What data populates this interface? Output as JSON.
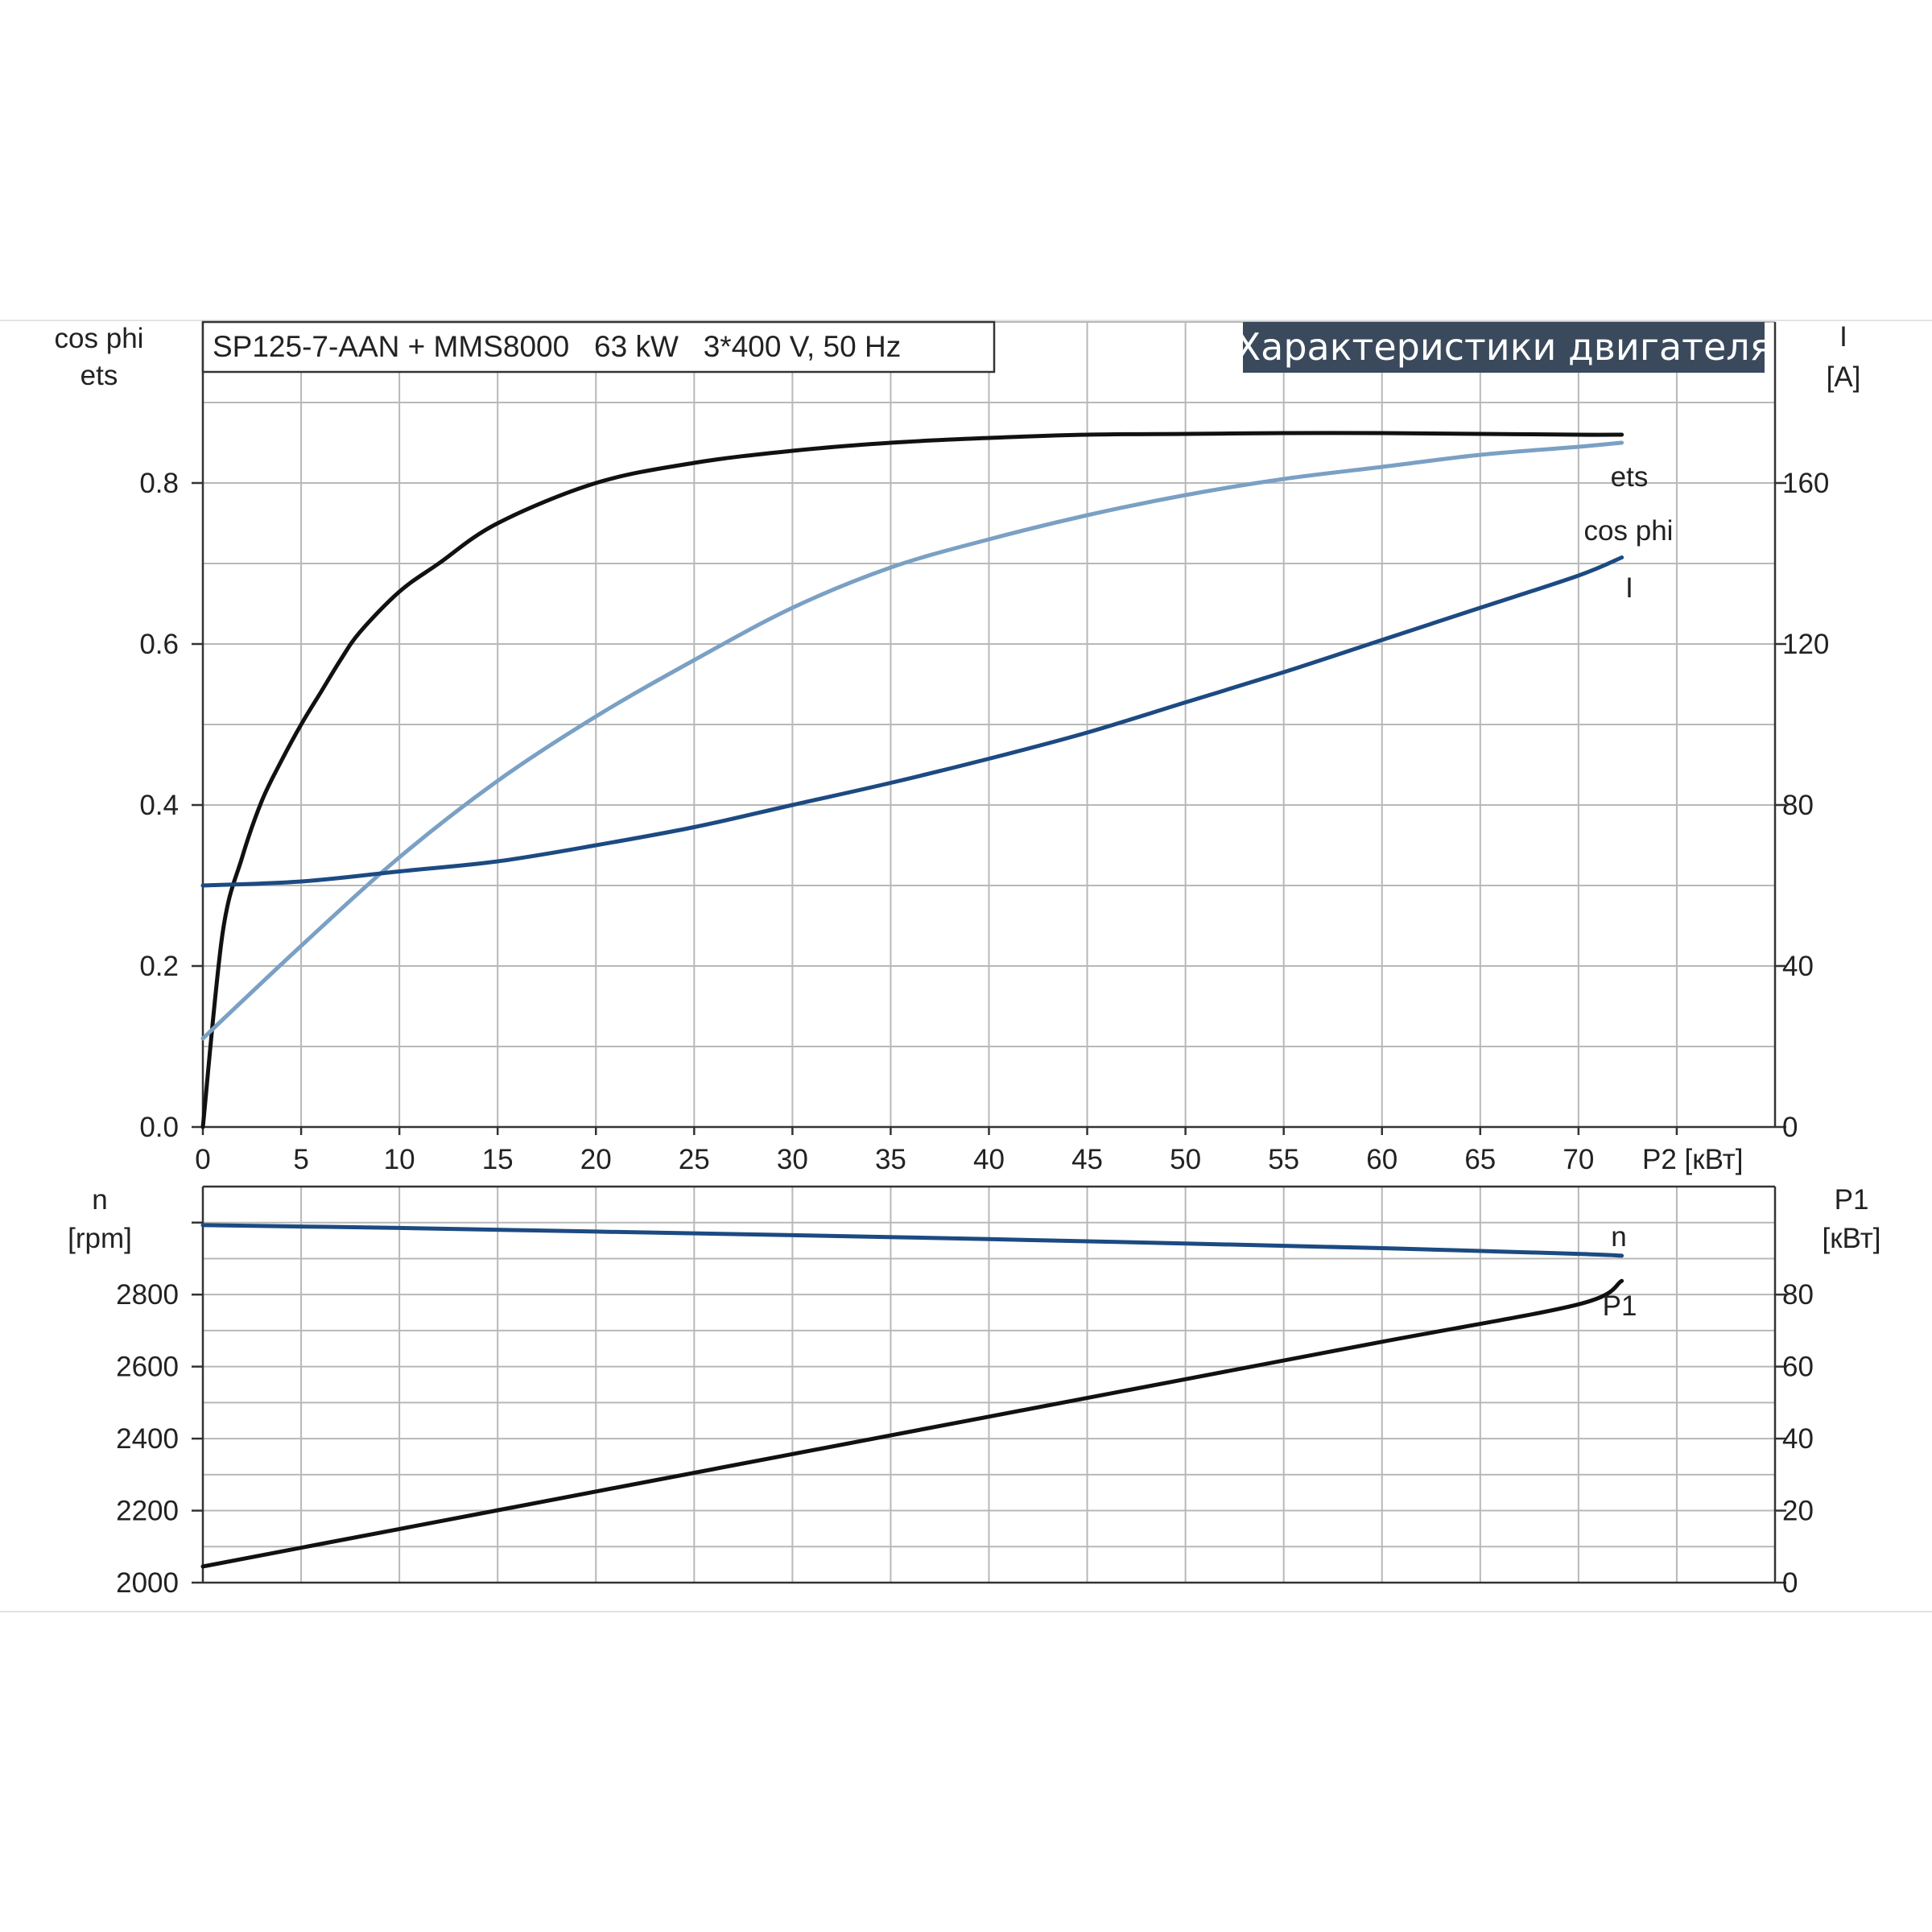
{
  "header": {
    "model": "SP125-7-AAN + MMS8000   63 kW   3*400 V, 50 Hz",
    "title": "Характеристики двигателя"
  },
  "chart_data": [
    {
      "type": "line",
      "title": "Характеристики двигателя",
      "xlabel": "P2 [кВт]",
      "xlim": [
        0,
        80
      ],
      "x_ticks": [
        "0",
        "5",
        "10",
        "15",
        "20",
        "25",
        "30",
        "35",
        "40",
        "45",
        "50",
        "55",
        "60",
        "65",
        "70"
      ],
      "y_left": {
        "label_lines": [
          "cos phi",
          "ets"
        ],
        "lim": [
          0,
          1.0
        ],
        "ticks": [
          "0.0",
          "0.2",
          "0.4",
          "0.6",
          "0.8"
        ]
      },
      "y_right": {
        "label_lines": [
          "I",
          "[A]"
        ],
        "lim": [
          0,
          200
        ],
        "ticks": [
          "0",
          "40",
          "80",
          "120",
          "160"
        ]
      },
      "grid": true,
      "series": [
        {
          "name": "ets",
          "axis": "left",
          "color": "#111111",
          "x": [
            0,
            1,
            2,
            3,
            4,
            5,
            6,
            7,
            8,
            10,
            12,
            15,
            20,
            25,
            30,
            35,
            40,
            45,
            50,
            55,
            60,
            65,
            70,
            72.2
          ],
          "y": [
            0.0,
            0.24,
            0.335,
            0.405,
            0.455,
            0.5,
            0.54,
            0.58,
            0.615,
            0.665,
            0.7,
            0.75,
            0.8,
            0.825,
            0.84,
            0.85,
            0.856,
            0.86,
            0.861,
            0.862,
            0.862,
            0.861,
            0.86,
            0.86
          ]
        },
        {
          "name": "cos phi",
          "axis": "left",
          "color": "#7aa0c4",
          "x": [
            0,
            5,
            10,
            15,
            20,
            25,
            30,
            35,
            40,
            45,
            50,
            55,
            60,
            65,
            70,
            72.2
          ],
          "y": [
            0.11,
            0.225,
            0.335,
            0.43,
            0.51,
            0.58,
            0.645,
            0.695,
            0.73,
            0.76,
            0.785,
            0.805,
            0.82,
            0.835,
            0.845,
            0.85
          ]
        },
        {
          "name": "I",
          "axis": "right",
          "color": "#1c4a82",
          "x": [
            0,
            5,
            10,
            15,
            20,
            25,
            30,
            35,
            40,
            45,
            50,
            55,
            60,
            65,
            70,
            72.2
          ],
          "y": [
            60,
            61,
            63.5,
            66,
            70,
            74.5,
            80,
            85.5,
            91.5,
            98,
            105.5,
            113,
            121,
            129,
            137,
            141.5
          ]
        }
      ]
    },
    {
      "type": "line",
      "xlabel": "",
      "xlim": [
        0,
        80
      ],
      "y_left": {
        "label_lines": [
          "n",
          "[rpm]"
        ],
        "lim": [
          2000,
          3100
        ],
        "ticks": [
          "2000",
          "2200",
          "2400",
          "2600",
          "2800"
        ]
      },
      "y_right": {
        "label_lines": [
          "P1",
          "[кВт]"
        ],
        "lim": [
          0,
          110
        ],
        "ticks": [
          "0",
          "20",
          "40",
          "60",
          "80"
        ]
      },
      "grid": true,
      "series": [
        {
          "name": "n",
          "axis": "left",
          "color": "#1c4a82",
          "x": [
            0,
            10,
            20,
            30,
            40,
            50,
            60,
            70,
            72.2
          ],
          "y": [
            2993,
            2985,
            2975,
            2965,
            2954,
            2942,
            2929,
            2913,
            2908
          ]
        },
        {
          "name": "P1",
          "axis": "right",
          "color": "#111111",
          "x": [
            0,
            10,
            20,
            30,
            40,
            50,
            60,
            70,
            72.2
          ],
          "y": [
            4.5,
            14.9,
            25.3,
            35.7,
            46.1,
            56.5,
            66.9,
            77.3,
            83.8
          ]
        }
      ]
    }
  ]
}
